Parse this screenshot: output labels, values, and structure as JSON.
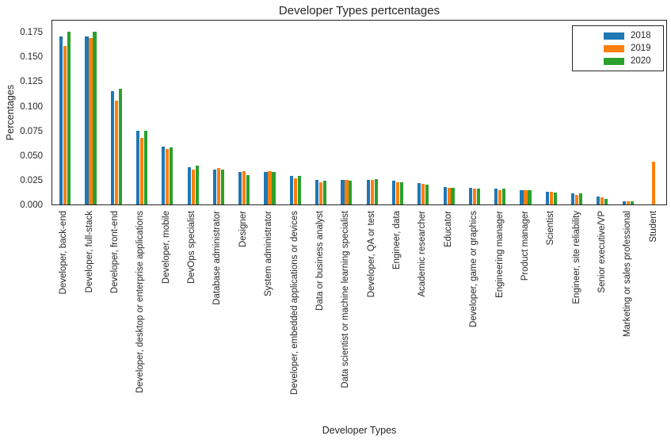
{
  "chart_data": {
    "type": "bar",
    "title": "Developer Types pertcentages",
    "xlabel": "Developer Types",
    "ylabel": "Percentages",
    "ylim": [
      0,
      0.188
    ],
    "yticks": [
      "0.000",
      "0.025",
      "0.050",
      "0.075",
      "0.100",
      "0.125",
      "0.150",
      "0.175"
    ],
    "grid": false,
    "legend_position": "upper right",
    "categories": [
      "Developer, back-end",
      "Developer, full-stack",
      "Developer, front-end",
      "Developer, desktop or enterprise applications",
      "Developer, mobile",
      "DevOps specialist",
      "Database administrator",
      "Designer",
      "System administrator",
      "Developer, embedded applications or devices",
      "Data or business analyst",
      "Data scientist or machine learning specialist",
      "Developer, QA or test",
      "Engineer, data",
      "Academic researcher",
      "Educator",
      "Developer, game or graphics",
      "Engineering manager",
      "Product manager",
      "Scientist",
      "Engineer, site reliability",
      "Senior executive/VP",
      "Marketing or sales professional",
      "Student"
    ],
    "series": [
      {
        "name": "2018",
        "color": "#1f77b4",
        "values": [
          0.172,
          0.172,
          0.116,
          0.075,
          0.059,
          0.038,
          0.036,
          0.033,
          0.033,
          0.029,
          0.025,
          0.025,
          0.025,
          0.024,
          0.022,
          0.018,
          0.017,
          0.016,
          0.015,
          0.013,
          0.011,
          0.008,
          0.003,
          0
        ]
      },
      {
        "name": "2019",
        "color": "#ff7f0e",
        "values": [
          0.162,
          0.17,
          0.106,
          0.068,
          0.057,
          0.036,
          0.037,
          0.034,
          0.034,
          0.027,
          0.023,
          0.025,
          0.025,
          0.023,
          0.021,
          0.017,
          0.016,
          0.015,
          0.015,
          0.013,
          0.01,
          0.007,
          0.003,
          0.044
        ]
      },
      {
        "name": "2020",
        "color": "#2ca02c",
        "values": [
          0.177,
          0.177,
          0.118,
          0.075,
          0.058,
          0.04,
          0.036,
          0.03,
          0.033,
          0.029,
          0.024,
          0.024,
          0.026,
          0.023,
          0.02,
          0.017,
          0.016,
          0.016,
          0.015,
          0.012,
          0.011,
          0.006,
          0.003,
          0
        ]
      }
    ]
  }
}
